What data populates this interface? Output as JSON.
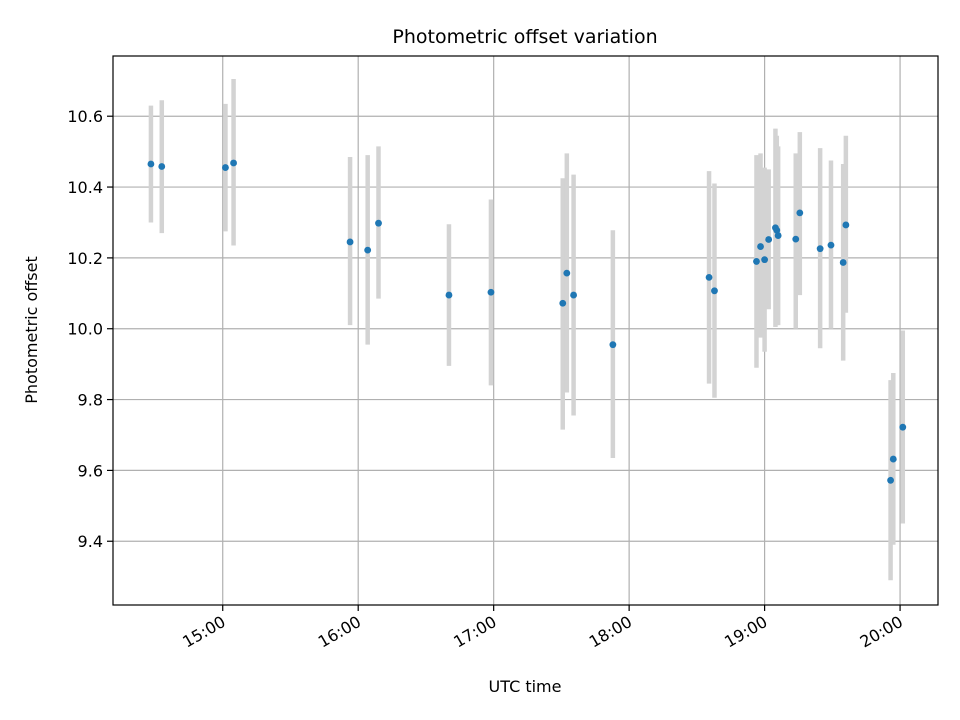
{
  "chart_data": {
    "type": "scatter",
    "title": "Photometric offset variation",
    "xlabel": "UTC time",
    "ylabel": "Photometric offset",
    "x_unit": "hours UTC",
    "xlim": [
      14.19,
      20.28
    ],
    "ylim": [
      9.22,
      10.77
    ],
    "x_ticks": [
      {
        "value": 15,
        "label": "15:00"
      },
      {
        "value": 16,
        "label": "16:00"
      },
      {
        "value": 17,
        "label": "17:00"
      },
      {
        "value": 18,
        "label": "18:00"
      },
      {
        "value": 19,
        "label": "19:00"
      },
      {
        "value": 20,
        "label": "20:00"
      }
    ],
    "y_ticks": [
      {
        "value": 9.4,
        "label": "9.4"
      },
      {
        "value": 9.6,
        "label": "9.6"
      },
      {
        "value": 9.8,
        "label": "9.8"
      },
      {
        "value": 10.0,
        "label": "10.0"
      },
      {
        "value": 10.2,
        "label": "10.2"
      },
      {
        "value": 10.4,
        "label": "10.4"
      },
      {
        "value": 10.6,
        "label": "10.6"
      }
    ],
    "grid": true,
    "colors": {
      "point": "#1f77b4",
      "errorbar": "#d3d3d3",
      "grid": "#b0b0b0"
    },
    "series": [
      {
        "points": [
          {
            "x": 14.47,
            "y": 10.465,
            "err_low": 10.3,
            "err_high": 10.63
          },
          {
            "x": 14.55,
            "y": 10.458,
            "err_low": 10.27,
            "err_high": 10.645
          },
          {
            "x": 15.02,
            "y": 10.455,
            "err_low": 10.275,
            "err_high": 10.635
          },
          {
            "x": 15.08,
            "y": 10.468,
            "err_low": 10.235,
            "err_high": 10.705
          },
          {
            "x": 15.94,
            "y": 10.245,
            "err_low": 10.01,
            "err_high": 10.485
          },
          {
            "x": 16.07,
            "y": 10.222,
            "err_low": 9.955,
            "err_high": 10.49
          },
          {
            "x": 16.15,
            "y": 10.298,
            "err_low": 10.085,
            "err_high": 10.515
          },
          {
            "x": 16.67,
            "y": 10.095,
            "err_low": 9.895,
            "err_high": 10.295
          },
          {
            "x": 16.98,
            "y": 10.103,
            "err_low": 9.84,
            "err_high": 10.365
          },
          {
            "x": 17.51,
            "y": 10.072,
            "err_low": 9.715,
            "err_high": 10.425
          },
          {
            "x": 17.54,
            "y": 10.157,
            "err_low": 9.82,
            "err_high": 10.495
          },
          {
            "x": 17.59,
            "y": 10.095,
            "err_low": 9.755,
            "err_high": 10.435
          },
          {
            "x": 17.88,
            "y": 9.955,
            "err_low": 9.635,
            "err_high": 10.278
          },
          {
            "x": 18.59,
            "y": 10.145,
            "err_low": 9.845,
            "err_high": 10.445
          },
          {
            "x": 18.63,
            "y": 10.107,
            "err_low": 9.805,
            "err_high": 10.41
          },
          {
            "x": 18.94,
            "y": 10.19,
            "err_low": 9.89,
            "err_high": 10.49
          },
          {
            "x": 18.97,
            "y": 10.232,
            "err_low": 9.975,
            "err_high": 10.495
          },
          {
            "x": 19.0,
            "y": 10.195,
            "err_low": 9.935,
            "err_high": 10.455
          },
          {
            "x": 19.03,
            "y": 10.252,
            "err_low": 10.055,
            "err_high": 10.45
          },
          {
            "x": 19.08,
            "y": 10.285,
            "err_low": 10.005,
            "err_high": 10.565
          },
          {
            "x": 19.09,
            "y": 10.278,
            "err_low": 10.01,
            "err_high": 10.545
          },
          {
            "x": 19.1,
            "y": 10.263,
            "err_low": 10.01,
            "err_high": 10.515
          },
          {
            "x": 19.23,
            "y": 10.253,
            "err_low": 10.0,
            "err_high": 10.495
          },
          {
            "x": 19.26,
            "y": 10.327,
            "err_low": 10.095,
            "err_high": 10.555
          },
          {
            "x": 19.41,
            "y": 10.226,
            "err_low": 9.945,
            "err_high": 10.51
          },
          {
            "x": 19.49,
            "y": 10.236,
            "err_low": 10.0,
            "err_high": 10.475
          },
          {
            "x": 19.58,
            "y": 10.187,
            "err_low": 9.91,
            "err_high": 10.465
          },
          {
            "x": 19.6,
            "y": 10.293,
            "err_low": 10.045,
            "err_high": 10.545
          },
          {
            "x": 19.93,
            "y": 9.572,
            "err_low": 9.29,
            "err_high": 9.855
          },
          {
            "x": 19.95,
            "y": 9.632,
            "err_low": 9.39,
            "err_high": 9.875
          },
          {
            "x": 20.02,
            "y": 9.722,
            "err_low": 9.45,
            "err_high": 9.995
          }
        ]
      }
    ]
  }
}
